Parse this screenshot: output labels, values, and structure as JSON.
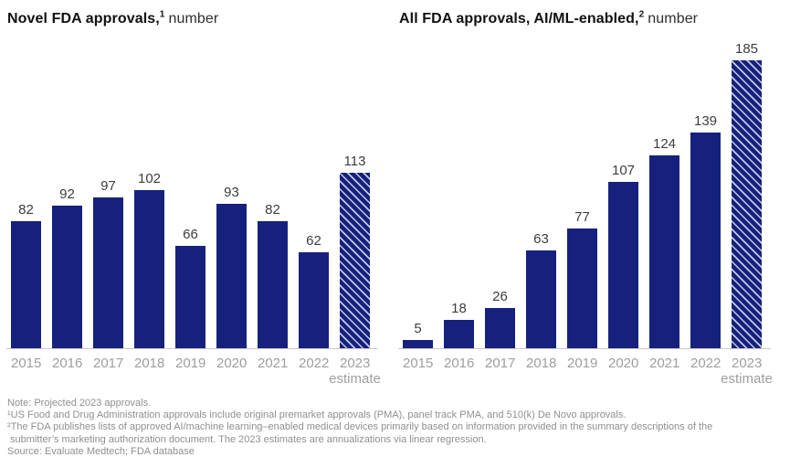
{
  "colors": {
    "bar": "#16217d",
    "hatch_stripe": "#c4cbe2",
    "value_label": "#3d3d3d",
    "axis_label": "#9e9e9e",
    "axis_line": "#c9c9c9",
    "title": "#111111",
    "note": "#8f8f8f",
    "background": "#ffffff"
  },
  "chart_data": [
    {
      "type": "bar",
      "title": "Novel FDA approvals,¹ number",
      "title_bold": "Novel FDA approvals,",
      "title_sup": "1",
      "title_regular": "number",
      "categories": [
        "2015",
        "2016",
        "2017",
        "2018",
        "2019",
        "2020",
        "2021",
        "2022",
        "2023"
      ],
      "values": [
        82,
        92,
        97,
        102,
        66,
        93,
        82,
        62,
        113
      ],
      "last_bar_hatched": true,
      "last_category_sublabel": "estimate",
      "ylabel": "number",
      "ylim": [
        0,
        190
      ],
      "grid": false,
      "legend": "none",
      "value_labels_shown": true
    },
    {
      "type": "bar",
      "title": "All FDA approvals, AI/ML-enabled,² number",
      "title_bold": "All FDA approvals, AI/ML-enabled,",
      "title_sup": "2",
      "title_regular": "number",
      "categories": [
        "2015",
        "2016",
        "2017",
        "2018",
        "2019",
        "2020",
        "2021",
        "2022",
        "2023"
      ],
      "values": [
        5,
        18,
        26,
        63,
        77,
        107,
        124,
        139,
        185
      ],
      "last_bar_hatched": true,
      "last_category_sublabel": "estimate",
      "ylabel": "number",
      "ylim": [
        0,
        190
      ],
      "grid": false,
      "legend": "none",
      "value_labels_shown": true
    }
  ],
  "notes": {
    "lines": [
      "Note: Projected 2023 approvals.",
      "¹US Food and Drug Administration approvals include original premarket approvals (PMA), panel track PMA, and 510(k) De Novo approvals.",
      "²The FDA publishes lists of approved AI/machine learning–enabled medical devices primarily based on information provided in the summary descriptions of the",
      " submitter’s marketing authorization document. The 2023 estimates are annualizations via linear regression.",
      "Source: Evaluate Medtech; FDA database"
    ]
  }
}
